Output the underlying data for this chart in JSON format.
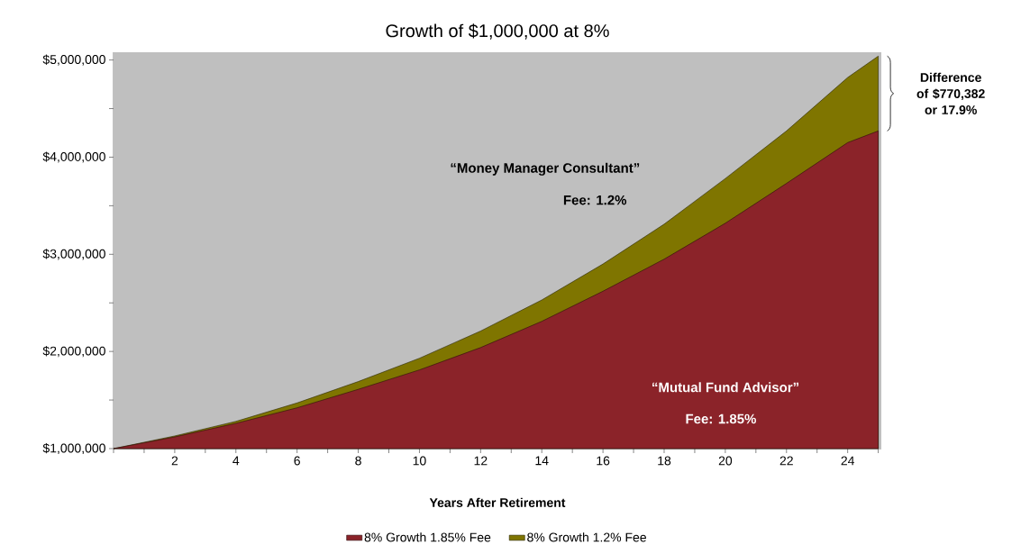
{
  "chart_data": {
    "type": "area",
    "title": "Growth of $1,000,000 at 8%",
    "xlabel": "Years After Retirement",
    "x": [
      0,
      2,
      4,
      6,
      8,
      10,
      12,
      14,
      16,
      18,
      20,
      22,
      24,
      25
    ],
    "series": [
      {
        "name": "8% Growth 1.85% Fee",
        "color": "#8b2329",
        "values": [
          1000000,
          1120000,
          1260000,
          1420000,
          1610000,
          1810000,
          2040000,
          2310000,
          2620000,
          2950000,
          3320000,
          3730000,
          4150000,
          4270000
        ]
      },
      {
        "name": "8% Growth 1.2% Fee",
        "color": "#7f7500",
        "values": [
          1000000,
          1130000,
          1280000,
          1470000,
          1690000,
          1930000,
          2210000,
          2530000,
          2900000,
          3310000,
          3780000,
          4270000,
          4820000,
          5040000
        ]
      }
    ],
    "xlim": [
      0,
      25.1
    ],
    "ylim": [
      1000000,
      5080000
    ],
    "xticks": [
      {
        "value": 0,
        "label": null
      },
      {
        "value": 1,
        "label": null
      },
      2,
      {
        "value": 3,
        "label": null
      },
      4,
      {
        "value": 5,
        "label": null
      },
      6,
      {
        "value": 7,
        "label": null
      },
      8,
      {
        "value": 9,
        "label": null
      },
      10,
      {
        "value": 11,
        "label": null
      },
      12,
      {
        "value": 13,
        "label": null
      },
      14,
      {
        "value": 15,
        "label": null
      },
      16,
      {
        "value": 17,
        "label": null
      },
      18,
      {
        "value": 19,
        "label": null
      },
      20,
      {
        "value": 21,
        "label": null
      },
      22,
      {
        "value": 23,
        "label": null
      },
      24,
      {
        "value": 25,
        "label": null
      }
    ],
    "yticks": [
      {
        "value": 1000000,
        "label": "$1,000,000"
      },
      {
        "value": 1500000,
        "label": null
      },
      {
        "value": 2000000,
        "label": "$2,000,000"
      },
      {
        "value": 2500000,
        "label": null
      },
      {
        "value": 3000000,
        "label": "$3,000,000"
      },
      {
        "value": 3500000,
        "label": null
      },
      {
        "value": 4000000,
        "label": "$4,000,000"
      },
      {
        "value": 4500000,
        "label": null
      },
      {
        "value": 5000000,
        "label": "$5,000,000"
      }
    ],
    "annotations": [
      "“Money Manager Consultant”",
      "Fee: 1.2%",
      "“Mutual Fund Advisor”",
      "Fee: 1.85%",
      "Difference of $770,382 or 17.9%"
    ],
    "legend": "bottom"
  }
}
